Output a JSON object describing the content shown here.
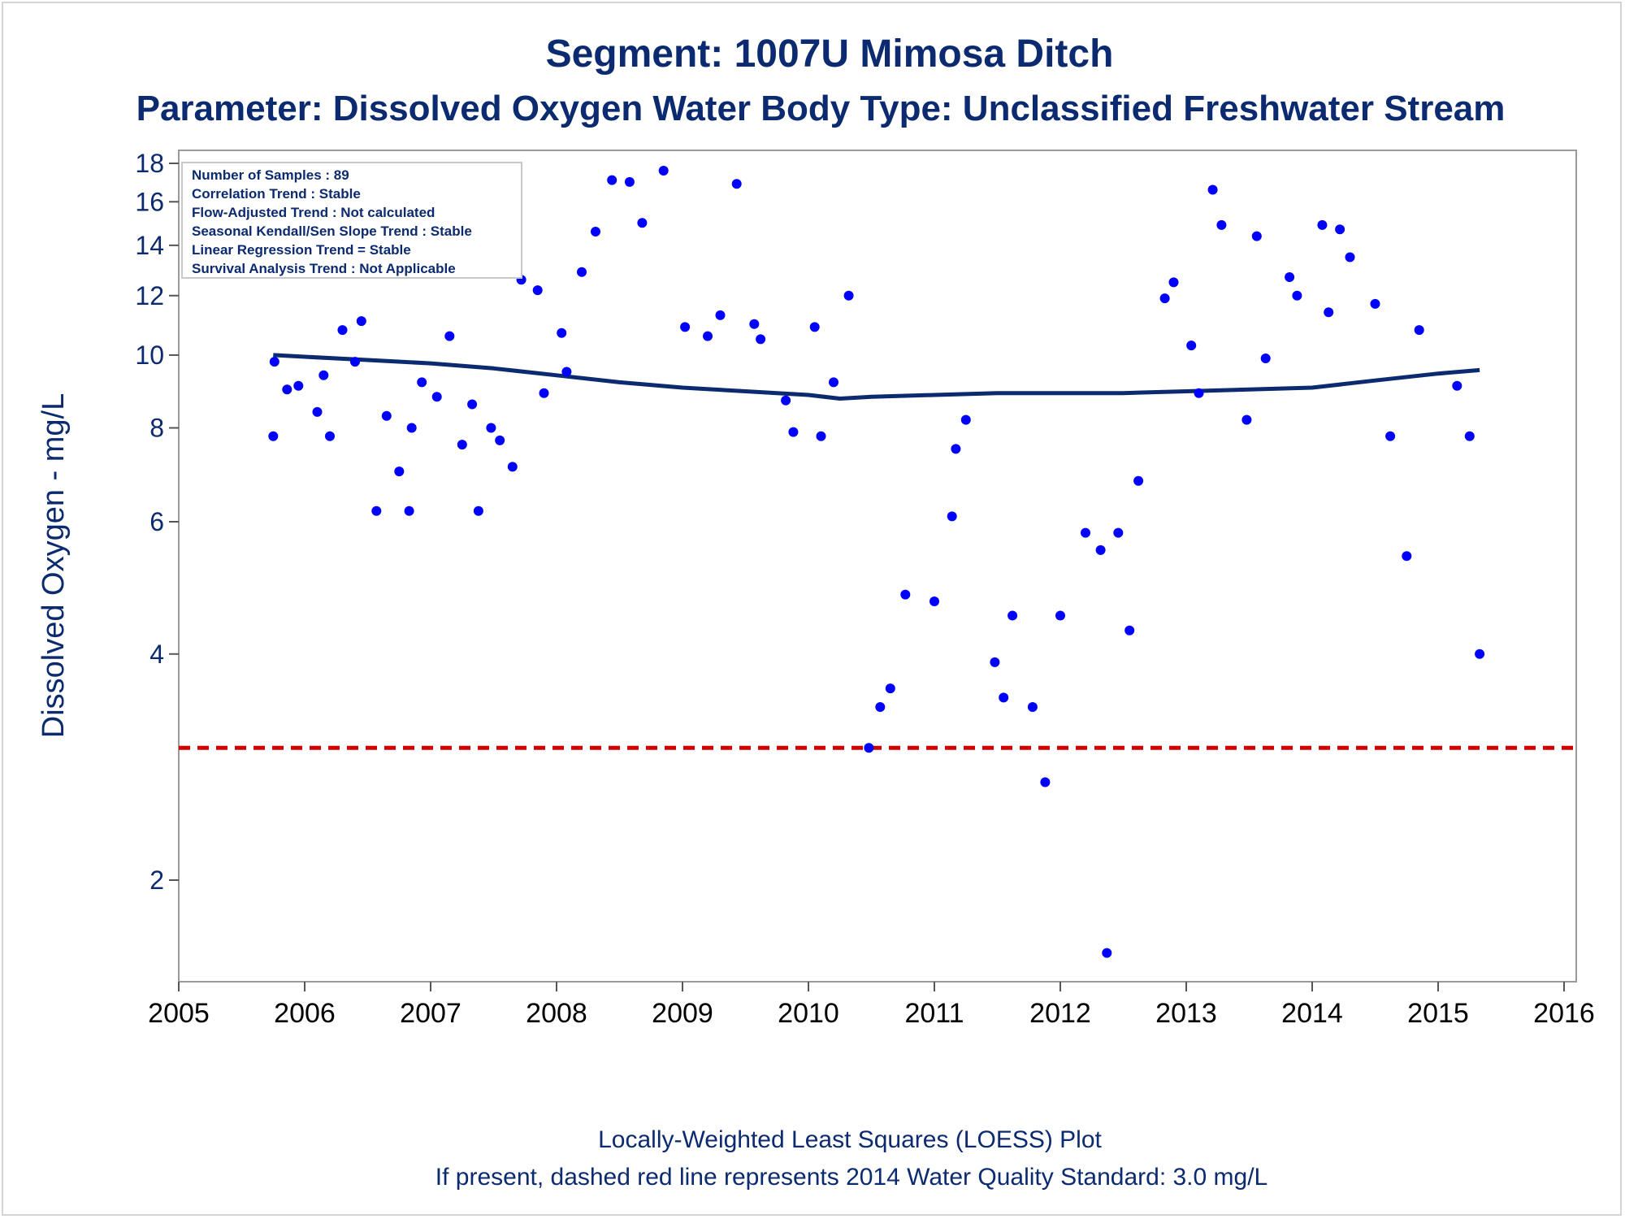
{
  "chart_data": {
    "type": "scatter",
    "title": "Segment: 1007U  Mimosa Ditch",
    "subtitle": "Parameter: Dissolved Oxygen   Water Body Type: Unclassified Freshwater Stream",
    "ylabel": "Dissolved Oxygen - mg/L",
    "xlabel": "",
    "y_scale": "log",
    "xlim": [
      2005,
      2016
    ],
    "ylim": [
      1.5,
      18.5
    ],
    "x_ticks": [
      2005,
      2006,
      2007,
      2008,
      2009,
      2010,
      2011,
      2012,
      2013,
      2014,
      2015,
      2016
    ],
    "y_ticks": [
      2,
      4,
      6,
      8,
      10,
      12,
      14,
      16,
      18
    ],
    "grid": false,
    "stats_box": {
      "position": "top-left",
      "lines": [
        "Number of Samples : 89",
        "Correlation Trend : Stable",
        "Flow-Adjusted Trend : Not calculated",
        "Seasonal Kendall/Sen Slope Trend : Stable",
        "Linear Regression Trend = Stable",
        "Survival Analysis Trend : Not Applicable"
      ]
    },
    "standard": {
      "value": 3.0,
      "color": "#d00000",
      "style": "dashed"
    },
    "points_color": "#0000ff",
    "trend_color": "#0b2a6f",
    "series": [
      {
        "type": "scatter",
        "x": [
          2005.75,
          2005.76,
          2005.86,
          2005.95,
          2006.1,
          2006.15,
          2006.2,
          2006.3,
          2006.4,
          2006.45,
          2006.57,
          2006.65,
          2006.75,
          2006.83,
          2006.85,
          2006.93,
          2007.05,
          2007.15,
          2007.25,
          2007.33,
          2007.38,
          2007.48,
          2007.55,
          2007.65,
          2007.72,
          2007.85,
          2007.9,
          2008.04,
          2008.08,
          2008.2,
          2008.31,
          2008.44,
          2008.58,
          2008.68,
          2008.85,
          2009.02,
          2009.2,
          2009.3,
          2009.43,
          2009.57,
          2009.62,
          2009.82,
          2009.88,
          2010.05,
          2010.1,
          2010.2,
          2010.32,
          2010.48,
          2010.57,
          2010.65,
          2010.77,
          2011.0,
          2011.14,
          2011.17,
          2011.25,
          2011.48,
          2011.55,
          2011.62,
          2011.78,
          2011.88,
          2012.0,
          2012.2,
          2012.32,
          2012.37,
          2012.46,
          2012.55,
          2012.62,
          2012.83,
          2012.9,
          2013.04,
          2013.1,
          2013.21,
          2013.28,
          2013.48,
          2013.56,
          2013.63,
          2013.82,
          2013.88,
          2014.08,
          2014.13,
          2014.22,
          2014.3,
          2014.5,
          2014.62,
          2014.75,
          2014.85,
          2015.15,
          2015.25,
          2015.33
        ],
        "y": [
          7.8,
          9.8,
          9.0,
          9.1,
          8.4,
          9.4,
          7.8,
          10.8,
          9.8,
          11.1,
          6.2,
          8.3,
          7.0,
          6.2,
          8.0,
          9.2,
          8.8,
          10.6,
          7.6,
          8.6,
          6.2,
          8.0,
          7.7,
          7.1,
          12.6,
          12.2,
          8.9,
          10.7,
          9.5,
          12.9,
          14.6,
          17.1,
          17.0,
          15.0,
          17.6,
          10.9,
          10.6,
          11.3,
          16.9,
          11.0,
          10.5,
          8.7,
          7.9,
          10.9,
          7.8,
          9.2,
          12.0,
          3.0,
          3.4,
          3.6,
          4.8,
          4.7,
          6.1,
          7.5,
          8.2,
          3.9,
          3.5,
          4.5,
          3.4,
          2.7,
          4.5,
          5.8,
          5.5,
          1.6,
          5.8,
          4.3,
          6.8,
          11.9,
          12.5,
          10.3,
          8.9,
          16.6,
          14.9,
          8.2,
          14.4,
          9.9,
          12.7,
          12.0,
          14.9,
          11.4,
          14.7,
          13.5,
          11.7,
          7.8,
          5.4,
          10.8,
          9.1,
          7.8,
          4.0
        ]
      },
      {
        "type": "line",
        "x": [
          2005.75,
          2006.0,
          2006.5,
          2007.0,
          2007.5,
          2008.0,
          2008.5,
          2009.0,
          2009.5,
          2010.0,
          2010.25,
          2010.5,
          2011.0,
          2011.5,
          2012.0,
          2012.5,
          2013.0,
          2013.5,
          2014.0,
          2014.5,
          2015.0,
          2015.33
        ],
        "y": [
          10.0,
          9.95,
          9.85,
          9.75,
          9.6,
          9.4,
          9.2,
          9.05,
          8.95,
          8.85,
          8.75,
          8.8,
          8.85,
          8.9,
          8.9,
          8.9,
          8.95,
          9.0,
          9.05,
          9.25,
          9.45,
          9.55
        ]
      }
    ]
  },
  "footer": {
    "line1": "Locally-Weighted Least Squares (LOESS) Plot",
    "line2": "If present, dashed red line represents 2014 Water Quality Standard: 3.0 mg/L"
  }
}
